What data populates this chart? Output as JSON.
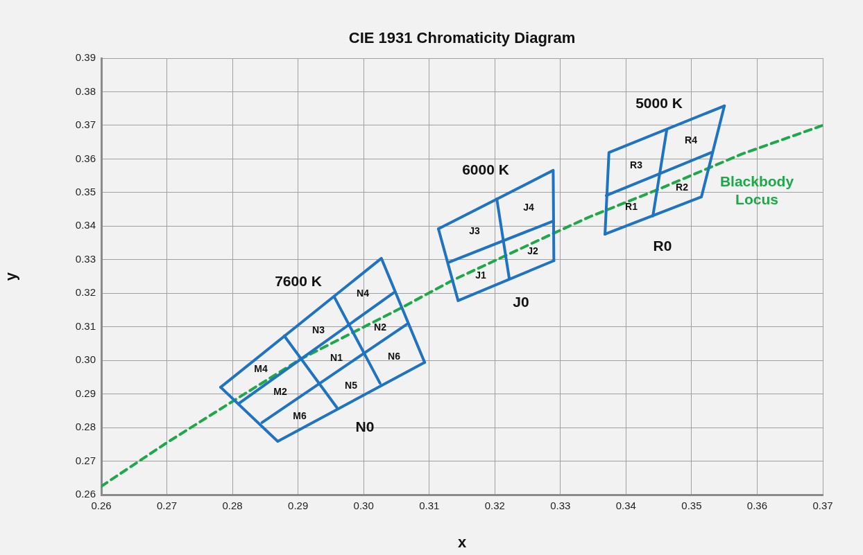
{
  "chart_data": {
    "type": "line",
    "title": "CIE 1931 Chromaticity Diagram",
    "xlabel": "x",
    "ylabel": "y",
    "xlim": [
      0.26,
      0.37
    ],
    "xticks": [
      0.26,
      0.27,
      0.28,
      0.29,
      {
        "value": 0.3,
        "label": "0.30"
      },
      0.31,
      0.32,
      0.33,
      0.34,
      0.35,
      0.36,
      0.37
    ],
    "ylim": [
      0.26,
      0.39
    ],
    "yticks": [
      0.26,
      0.27,
      0.28,
      0.29,
      {
        "value": 0.3,
        "label": "0.30"
      },
      0.31,
      0.32,
      0.33,
      0.34,
      0.35,
      0.36,
      0.37,
      0.38,
      0.39
    ],
    "grid": true,
    "legend": false,
    "marker": "none",
    "series": [
      {
        "color": "#1f73c0",
        "x": [
          0.2782,
          0.2869,
          0.3093
        ],
        "values": [
          0.292,
          0.2759,
          0.2994
        ]
      },
      {
        "color": "#1f73c0",
        "x": [
          0.2782,
          0.3027,
          0.3093
        ],
        "values": [
          0.292,
          0.3304,
          0.2994
        ]
      },
      {
        "color": "#1f73c0",
        "x": [
          0.281,
          0.3046
        ],
        "values": [
          0.2872,
          0.3202
        ]
      },
      {
        "color": "#1f73c0",
        "x": [
          0.2845,
          0.3066
        ],
        "values": [
          0.2815,
          0.3108
        ]
      },
      {
        "color": "#1f73c0",
        "x": [
          0.2879,
          0.2959
        ],
        "values": [
          0.3073,
          0.286
        ]
      },
      {
        "color": "#1f73c0",
        "x": [
          0.2955,
          0.3025
        ],
        "values": [
          0.319,
          0.2932
        ]
      },
      {
        "color": "#1f73c0",
        "x": [
          0.3114,
          0.3144,
          0.329
        ],
        "values": [
          0.3392,
          0.3178,
          0.3297
        ]
      },
      {
        "color": "#1f73c0",
        "x": [
          0.3114,
          0.3289,
          0.329
        ],
        "values": [
          0.3392,
          0.3566,
          0.3297
        ]
      },
      {
        "color": "#1f73c0",
        "x": [
          0.3131,
          0.3289
        ],
        "values": [
          0.3293,
          0.3415
        ]
      },
      {
        "color": "#1f73c0",
        "x": [
          0.3203,
          0.3222
        ],
        "values": [
          0.3481,
          0.3244
        ]
      },
      {
        "color": "#1f73c0",
        "x": [
          0.3368,
          0.3515,
          0.355
        ],
        "values": [
          0.3376,
          0.3487,
          0.3758
        ]
      },
      {
        "color": "#1f73c0",
        "x": [
          0.3368,
          0.3374,
          0.355
        ],
        "values": [
          0.3376,
          0.3619,
          0.3758
        ]
      },
      {
        "color": "#1f73c0",
        "x": [
          0.337,
          0.353
        ],
        "values": [
          0.3491,
          0.3619
        ]
      },
      {
        "color": "#1f73c0",
        "x": [
          0.3441,
          0.3462
        ],
        "values": [
          0.343,
          0.3685
        ]
      },
      {
        "name": "Blackbody Locus",
        "color": "#1fa84a",
        "line_style": "dashed",
        "x": [
          0.26,
          0.27,
          0.281,
          0.2904,
          0.3056,
          0.3135,
          0.3289,
          0.3345,
          0.345,
          0.3577,
          0.37
        ],
        "values": [
          0.2625,
          0.2755,
          0.289,
          0.3004,
          0.3155,
          0.3238,
          0.3378,
          0.3428,
          0.351,
          0.3615,
          0.37
        ]
      }
    ],
    "annotations": [
      "7600 K",
      "N0",
      "6000 K",
      "J0",
      "5000 K",
      "R0",
      "M4",
      "M2",
      "M6",
      "N3",
      "N1",
      "N5",
      "N4",
      "N2",
      "N6",
      "J3",
      "J1",
      "J4",
      "J2",
      "R3",
      "R1",
      "R4",
      "R2"
    ]
  }
}
